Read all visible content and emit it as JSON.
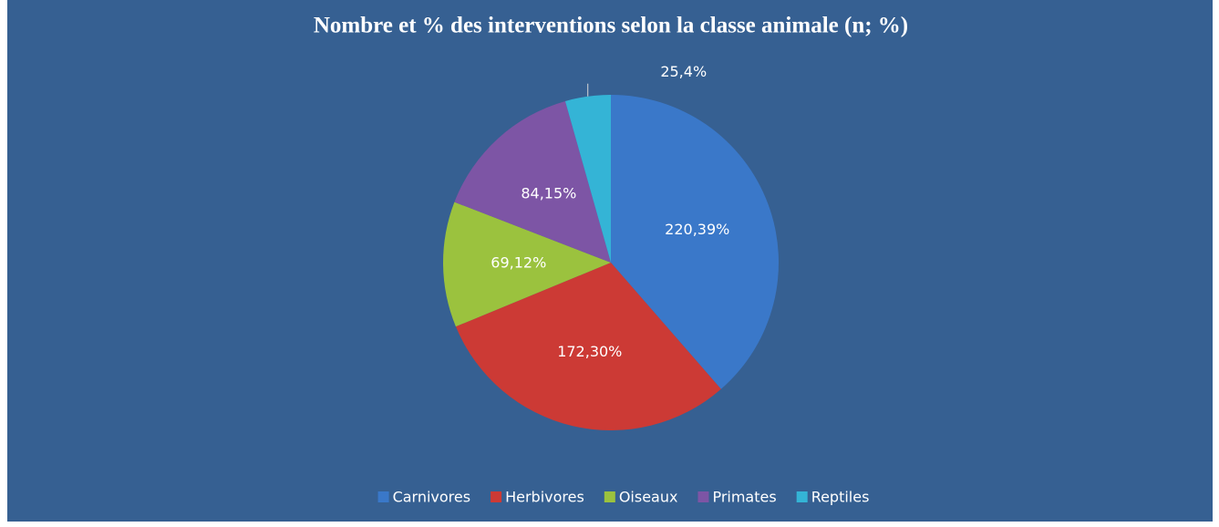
{
  "chart_data": {
    "type": "pie",
    "title": "Nombre et % des interventions selon la classe animale (n; %)",
    "categories": [
      "Carnivores",
      "Herbivores",
      "Oiseaux",
      "Primates",
      "Reptiles"
    ],
    "values": [
      220,
      172,
      69,
      84,
      25
    ],
    "value_labels": [
      "220,39%",
      "172,30%",
      "69,12%",
      "84,15%",
      "25,4%"
    ],
    "colors": [
      "#3a78c9",
      "#cc3a35",
      "#9bc23e",
      "#7d55a5",
      "#34b4d6"
    ],
    "legend": "bottom"
  }
}
